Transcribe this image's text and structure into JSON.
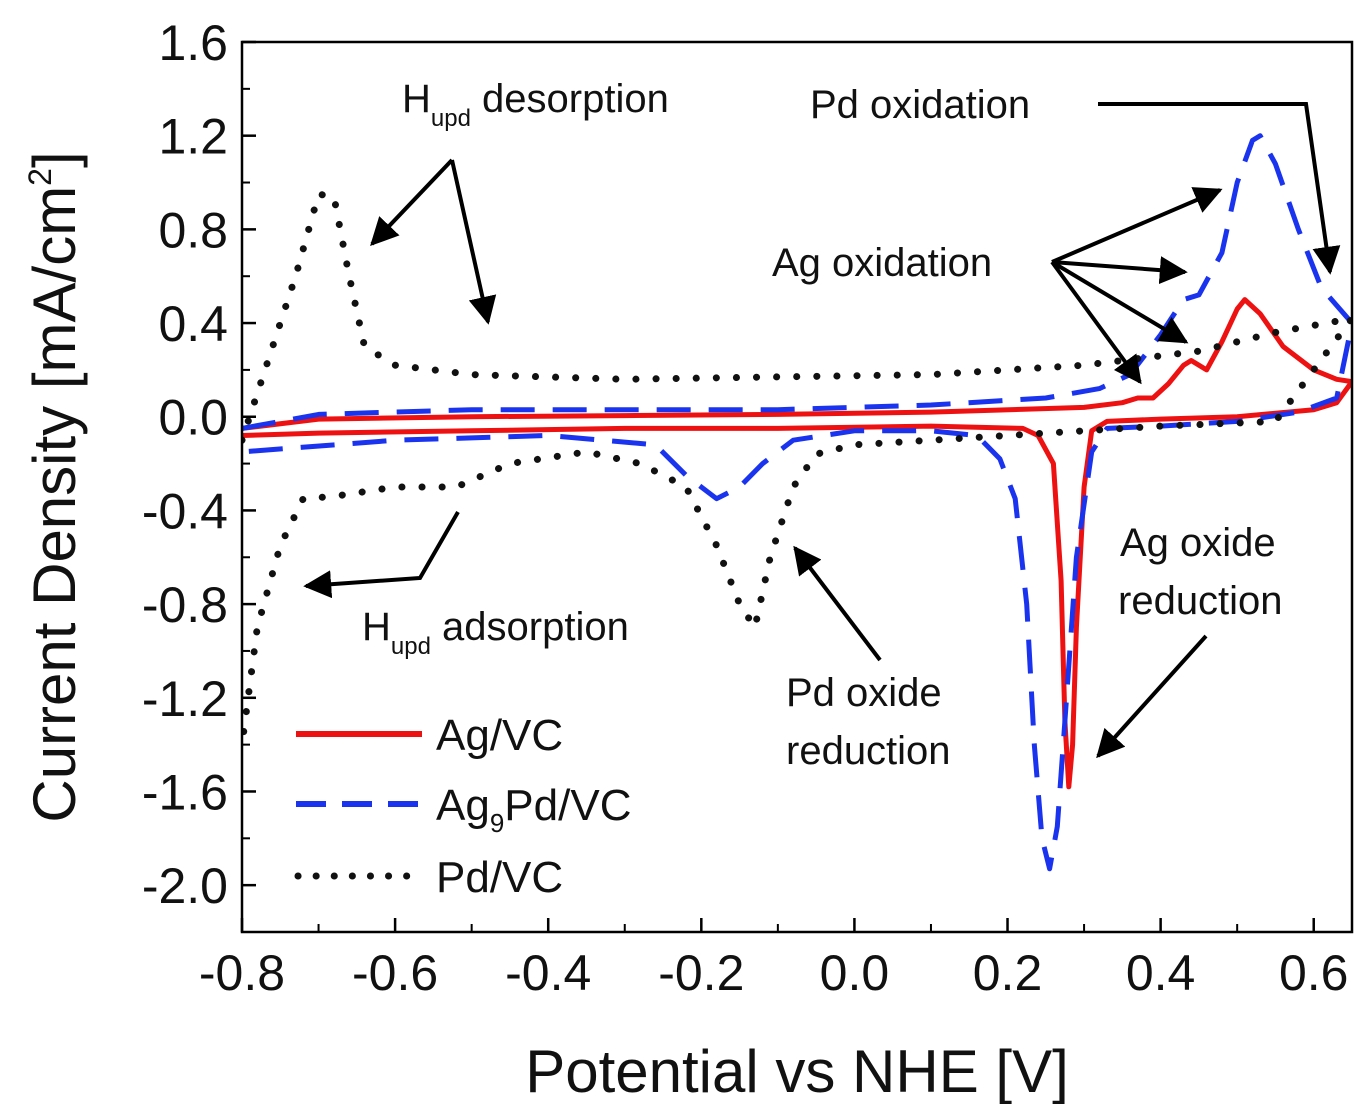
{
  "chart_data": {
    "type": "line",
    "title": "",
    "xlabel": "Potential vs NHE [V]",
    "ylabel": "Current Density [mA/cm",
    "ylabel_sup": "2",
    "ylabel_end": "]",
    "xlim": [
      -0.8,
      0.65
    ],
    "ylim": [
      -2.2,
      1.6
    ],
    "x_ticks": [
      -0.8,
      -0.6,
      -0.4,
      -0.2,
      0.0,
      0.2,
      0.4,
      0.6
    ],
    "x_tick_labels": [
      "-0.8",
      "-0.6",
      "-0.4",
      "-0.2",
      "0.0",
      "0.2",
      "0.4",
      "0.6"
    ],
    "y_ticks": [
      1.6,
      1.2,
      0.8,
      0.4,
      0.0,
      -0.4,
      -0.8,
      -1.2,
      -1.6,
      -2.0
    ],
    "y_tick_labels": [
      "1.6",
      "1.2",
      "0.8",
      "0.4",
      "0.0",
      "-0.4",
      "-0.8",
      "-1.2",
      "-1.6",
      "-2.0"
    ],
    "grid": false,
    "legend_position": "bottom-left",
    "legend": [
      {
        "series": "Ag/VC",
        "label": "Ag/VC"
      },
      {
        "series": "Ag9Pd/VC",
        "label": "Ag",
        "sub": "9",
        "label_end": "Pd/VC"
      },
      {
        "series": "Pd/VC",
        "label": "Pd/VC"
      }
    ],
    "series": [
      {
        "name": "Ag/VC",
        "color": "#ee1111",
        "style": "solid",
        "points": [
          [
            -0.8,
            -0.05
          ],
          [
            -0.7,
            -0.01
          ],
          [
            -0.5,
            0.0
          ],
          [
            -0.3,
            0.005
          ],
          [
            -0.1,
            0.01
          ],
          [
            0.1,
            0.02
          ],
          [
            0.3,
            0.04
          ],
          [
            0.35,
            0.06
          ],
          [
            0.37,
            0.08
          ],
          [
            0.39,
            0.08
          ],
          [
            0.41,
            0.14
          ],
          [
            0.43,
            0.22
          ],
          [
            0.44,
            0.24
          ],
          [
            0.46,
            0.2
          ],
          [
            0.48,
            0.32
          ],
          [
            0.5,
            0.46
          ],
          [
            0.51,
            0.5
          ],
          [
            0.53,
            0.44
          ],
          [
            0.56,
            0.3
          ],
          [
            0.6,
            0.2
          ],
          [
            0.63,
            0.16
          ],
          [
            0.65,
            0.15
          ],
          [
            0.63,
            0.06
          ],
          [
            0.6,
            0.03
          ],
          [
            0.5,
            0.0
          ],
          [
            0.4,
            -0.01
          ],
          [
            0.33,
            -0.02
          ],
          [
            0.31,
            -0.06
          ],
          [
            0.3,
            -0.3
          ],
          [
            0.29,
            -0.9
          ],
          [
            0.285,
            -1.4
          ],
          [
            0.28,
            -1.58
          ],
          [
            0.275,
            -1.3
          ],
          [
            0.27,
            -0.7
          ],
          [
            0.26,
            -0.2
          ],
          [
            0.24,
            -0.08
          ],
          [
            0.22,
            -0.05
          ],
          [
            0.1,
            -0.04
          ],
          [
            -0.1,
            -0.05
          ],
          [
            -0.3,
            -0.05
          ],
          [
            -0.5,
            -0.06
          ],
          [
            -0.7,
            -0.07
          ],
          [
            -0.8,
            -0.08
          ]
        ]
      },
      {
        "name": "Ag9Pd/VC",
        "color": "#1a33ee",
        "style": "dashed",
        "points": [
          [
            -0.8,
            -0.05
          ],
          [
            -0.7,
            0.01
          ],
          [
            -0.5,
            0.03
          ],
          [
            -0.3,
            0.03
          ],
          [
            -0.1,
            0.03
          ],
          [
            0.1,
            0.05
          ],
          [
            0.25,
            0.08
          ],
          [
            0.32,
            0.12
          ],
          [
            0.36,
            0.18
          ],
          [
            0.4,
            0.35
          ],
          [
            0.43,
            0.5
          ],
          [
            0.45,
            0.52
          ],
          [
            0.48,
            0.7
          ],
          [
            0.5,
            1.0
          ],
          [
            0.52,
            1.18
          ],
          [
            0.53,
            1.2
          ],
          [
            0.55,
            1.08
          ],
          [
            0.58,
            0.8
          ],
          [
            0.61,
            0.55
          ],
          [
            0.65,
            0.4
          ],
          [
            0.63,
            0.08
          ],
          [
            0.58,
            0.02
          ],
          [
            0.5,
            -0.02
          ],
          [
            0.4,
            -0.04
          ],
          [
            0.33,
            -0.05
          ],
          [
            0.31,
            -0.15
          ],
          [
            0.29,
            -0.6
          ],
          [
            0.275,
            -1.3
          ],
          [
            0.265,
            -1.75
          ],
          [
            0.255,
            -1.93
          ],
          [
            0.245,
            -1.8
          ],
          [
            0.235,
            -1.4
          ],
          [
            0.225,
            -0.8
          ],
          [
            0.21,
            -0.35
          ],
          [
            0.19,
            -0.18
          ],
          [
            0.16,
            -0.08
          ],
          [
            0.1,
            -0.06
          ],
          [
            0.0,
            -0.06
          ],
          [
            -0.08,
            -0.1
          ],
          [
            -0.12,
            -0.2
          ],
          [
            -0.15,
            -0.3
          ],
          [
            -0.18,
            -0.35
          ],
          [
            -0.22,
            -0.25
          ],
          [
            -0.26,
            -0.12
          ],
          [
            -0.4,
            -0.08
          ],
          [
            -0.6,
            -0.1
          ],
          [
            -0.8,
            -0.15
          ]
        ]
      },
      {
        "name": "Pd/VC",
        "color": "#111111",
        "style": "dotted",
        "points": [
          [
            -0.8,
            -0.1
          ],
          [
            -0.77,
            0.2
          ],
          [
            -0.73,
            0.6
          ],
          [
            -0.7,
            0.95
          ],
          [
            -0.68,
            0.94
          ],
          [
            -0.66,
            0.6
          ],
          [
            -0.64,
            0.3
          ],
          [
            -0.6,
            0.22
          ],
          [
            -0.5,
            0.18
          ],
          [
            -0.3,
            0.16
          ],
          [
            -0.1,
            0.17
          ],
          [
            0.1,
            0.18
          ],
          [
            0.3,
            0.22
          ],
          [
            0.45,
            0.28
          ],
          [
            0.55,
            0.36
          ],
          [
            0.65,
            0.42
          ],
          [
            0.55,
            -0.02
          ],
          [
            0.4,
            -0.04
          ],
          [
            0.3,
            -0.06
          ],
          [
            0.2,
            -0.08
          ],
          [
            0.1,
            -0.1
          ],
          [
            0.0,
            -0.12
          ],
          [
            -0.05,
            -0.16
          ],
          [
            -0.08,
            -0.3
          ],
          [
            -0.11,
            -0.6
          ],
          [
            -0.13,
            -0.9
          ],
          [
            -0.15,
            -0.8
          ],
          [
            -0.18,
            -0.55
          ],
          [
            -0.22,
            -0.3
          ],
          [
            -0.28,
            -0.2
          ],
          [
            -0.35,
            -0.15
          ],
          [
            -0.45,
            -0.2
          ],
          [
            -0.52,
            -0.3
          ],
          [
            -0.6,
            -0.3
          ],
          [
            -0.68,
            -0.34
          ],
          [
            -0.72,
            -0.35
          ],
          [
            -0.75,
            -0.55
          ],
          [
            -0.78,
            -0.9
          ],
          [
            -0.8,
            -1.4
          ]
        ]
      }
    ],
    "annotations": [
      {
        "label": "H",
        "sub": "upd",
        "label_end": " desorption"
      },
      {
        "label": "Pd oxidation"
      },
      {
        "label": "Ag oxidation"
      },
      {
        "label": "H",
        "sub": "upd",
        "label_end": " adsorption"
      },
      {
        "label": "Pd oxide",
        "line2": "reduction"
      },
      {
        "label": "Ag oxide",
        "line2": "reduction"
      }
    ]
  }
}
